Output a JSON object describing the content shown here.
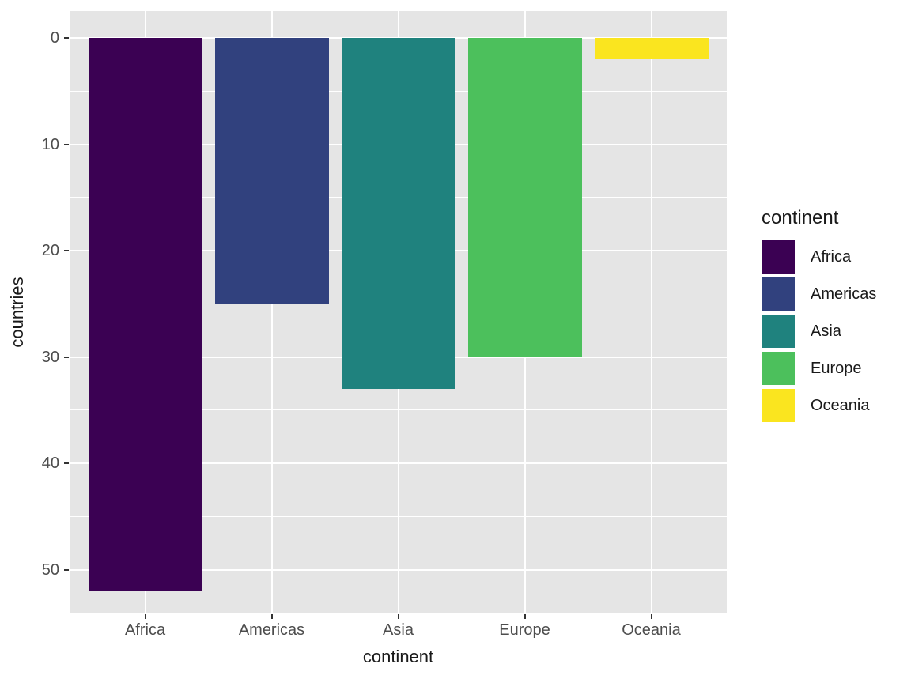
{
  "chart_data": {
    "type": "bar",
    "title": "",
    "categories": [
      "Africa",
      "Americas",
      "Asia",
      "Europe",
      "Oceania"
    ],
    "values": [
      52,
      25,
      33,
      30,
      2
    ],
    "series": [
      {
        "name": "countries",
        "values": [
          52,
          25,
          33,
          30,
          2
        ]
      }
    ],
    "xlabel": "continent",
    "ylabel": "countries",
    "y_ticks": [
      0,
      10,
      20,
      30,
      40,
      50
    ],
    "y_tick_labels": [
      "0",
      "10",
      "20",
      "30",
      "40",
      "50"
    ],
    "y_minor_ticks": [
      5,
      15,
      25,
      35,
      45
    ],
    "ylim": [
      0,
      52
    ],
    "y_axis_reversed": true,
    "grid": "on",
    "bar_colors": [
      "#3B0153",
      "#31417E",
      "#1F827E",
      "#4CC05C",
      "#FAE51F"
    ],
    "legend": {
      "title": "continent",
      "position": "right",
      "entries": [
        {
          "label": "Africa",
          "color": "#3B0153"
        },
        {
          "label": "Americas",
          "color": "#31417E"
        },
        {
          "label": "Asia",
          "color": "#1F827E"
        },
        {
          "label": "Europe",
          "color": "#4CC05C"
        },
        {
          "label": "Oceania",
          "color": "#FAE51F"
        }
      ]
    },
    "style_colors": {
      "panel_background": "#E5E5E5",
      "gridline": "#FFFFFF",
      "axis_text": "#4D4D4D",
      "axis_title": "#1A1A1A",
      "tick_mark": "#333333"
    }
  }
}
